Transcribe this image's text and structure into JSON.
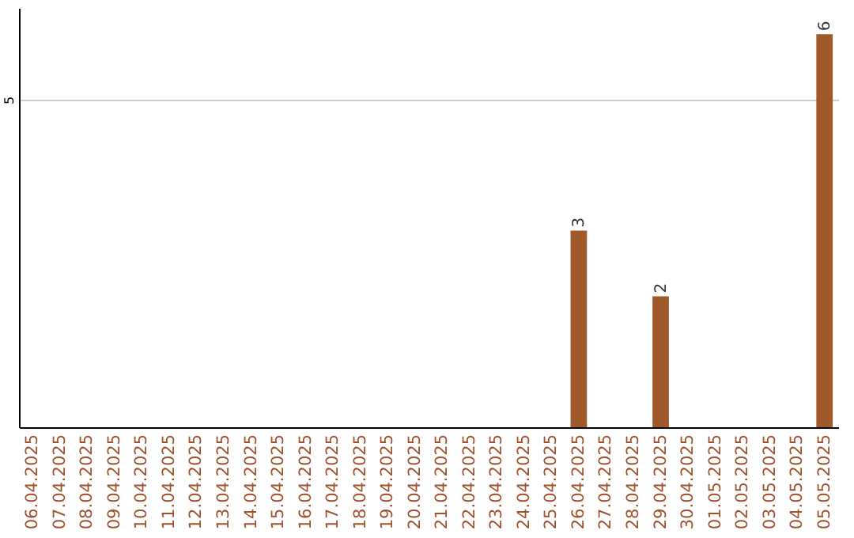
{
  "chart_data": {
    "type": "bar",
    "categories": [
      "06.04.2025",
      "07.04.2025",
      "08.04.2025",
      "09.04.2025",
      "10.04.2025",
      "11.04.2025",
      "12.04.2025",
      "13.04.2025",
      "14.04.2025",
      "15.04.2025",
      "16.04.2025",
      "17.04.2025",
      "18.04.2025",
      "19.04.2025",
      "20.04.2025",
      "21.04.2025",
      "22.04.2025",
      "23.04.2025",
      "24.04.2025",
      "25.04.2025",
      "26.04.2025",
      "27.04.2025",
      "28.04.2025",
      "29.04.2025",
      "30.04.2025",
      "01.05.2025",
      "02.05.2025",
      "03.05.2025",
      "04.05.2025",
      "05.05.2025"
    ],
    "values": [
      null,
      null,
      null,
      null,
      null,
      null,
      null,
      null,
      null,
      null,
      null,
      null,
      null,
      null,
      null,
      null,
      null,
      null,
      null,
      null,
      3,
      null,
      null,
      2,
      null,
      null,
      null,
      null,
      null,
      6
    ],
    "value_labels": [
      null,
      null,
      null,
      null,
      null,
      null,
      null,
      null,
      null,
      null,
      null,
      null,
      null,
      null,
      null,
      null,
      null,
      null,
      null,
      null,
      "3",
      null,
      null,
      "2",
      null,
      null,
      null,
      null,
      null,
      "6"
    ],
    "color": "#a0592a",
    "ylim": [
      0,
      6.4
    ],
    "yticks": [
      5
    ],
    "grid": "y"
  }
}
